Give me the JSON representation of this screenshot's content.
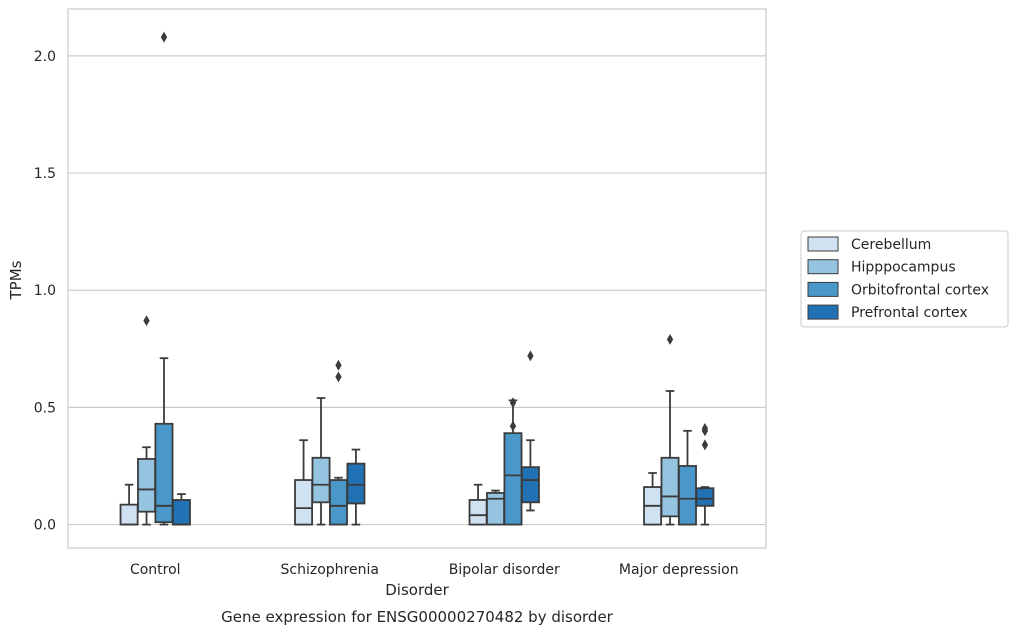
{
  "caption": "Gene expression for ENSG00000270482 by disorder",
  "chart_data": {
    "type": "box",
    "xlabel": "Disorder",
    "ylabel": "TPMs",
    "ylim": [
      -0.1,
      2.2
    ],
    "yticks": [
      0.0,
      0.5,
      1.0,
      1.5,
      2.0
    ],
    "ytick_labels": [
      "0.0",
      "0.5",
      "1.0",
      "1.5",
      "2.0"
    ],
    "grid": "horizontal",
    "legend_position": "right",
    "categories": [
      "Control",
      "Schizophrenia",
      "Bipolar disorder",
      "Major depression"
    ],
    "series": [
      {
        "name": "Cerebellum",
        "color": "#d0e1f2",
        "boxes": [
          {
            "whislo": 0.0,
            "q1": 0.0,
            "med": 0.0,
            "q3": 0.085,
            "whishi": 0.17,
            "fliers": []
          },
          {
            "whislo": 0.0,
            "q1": 0.0,
            "med": 0.07,
            "q3": 0.19,
            "whishi": 0.36,
            "fliers": []
          },
          {
            "whislo": 0.0,
            "q1": 0.0,
            "med": 0.04,
            "q3": 0.105,
            "whishi": 0.17,
            "fliers": []
          },
          {
            "whislo": 0.0,
            "q1": 0.0,
            "med": 0.08,
            "q3": 0.16,
            "whishi": 0.22,
            "fliers": []
          }
        ]
      },
      {
        "name": "Hipppocampus",
        "color": "#94c4df",
        "boxes": [
          {
            "whislo": 0.0,
            "q1": 0.055,
            "med": 0.15,
            "q3": 0.28,
            "whishi": 0.33,
            "fliers": [
              0.87
            ]
          },
          {
            "whislo": 0.0,
            "q1": 0.095,
            "med": 0.17,
            "q3": 0.285,
            "whishi": 0.54,
            "fliers": []
          },
          {
            "whislo": 0.0,
            "q1": 0.0,
            "med": 0.11,
            "q3": 0.135,
            "whishi": 0.145,
            "fliers": []
          },
          {
            "whislo": 0.0,
            "q1": 0.035,
            "med": 0.12,
            "q3": 0.285,
            "whishi": 0.57,
            "fliers": [
              0.79
            ]
          }
        ]
      },
      {
        "name": "Orbitofrontal cortex",
        "color": "#4a98c9",
        "boxes": [
          {
            "whislo": 0.0,
            "q1": 0.01,
            "med": 0.08,
            "q3": 0.43,
            "whishi": 0.71,
            "fliers": [
              2.08
            ]
          },
          {
            "whislo": 0.0,
            "q1": 0.0,
            "med": 0.08,
            "q3": 0.19,
            "whishi": 0.2,
            "fliers": [
              0.63,
              0.68
            ]
          },
          {
            "whislo": 0.0,
            "q1": 0.0,
            "med": 0.21,
            "q3": 0.39,
            "whishi": 0.53,
            "fliers": [
              0.42,
              0.52
            ]
          },
          {
            "whislo": 0.0,
            "q1": 0.0,
            "med": 0.11,
            "q3": 0.25,
            "whishi": 0.4,
            "fliers": []
          }
        ]
      },
      {
        "name": "Prefrontal cortex",
        "color": "#2171b5",
        "boxes": [
          {
            "whislo": 0.0,
            "q1": 0.0,
            "med": 0.0,
            "q3": 0.105,
            "whishi": 0.13,
            "fliers": []
          },
          {
            "whislo": 0.0,
            "q1": 0.09,
            "med": 0.17,
            "q3": 0.26,
            "whishi": 0.32,
            "fliers": []
          },
          {
            "whislo": 0.06,
            "q1": 0.095,
            "med": 0.19,
            "q3": 0.245,
            "whishi": 0.36,
            "fliers": [
              0.72
            ]
          },
          {
            "whislo": 0.0,
            "q1": 0.08,
            "med": 0.11,
            "q3": 0.155,
            "whishi": 0.16,
            "fliers": [
              0.34,
              0.4,
              0.41
            ]
          }
        ]
      }
    ]
  }
}
